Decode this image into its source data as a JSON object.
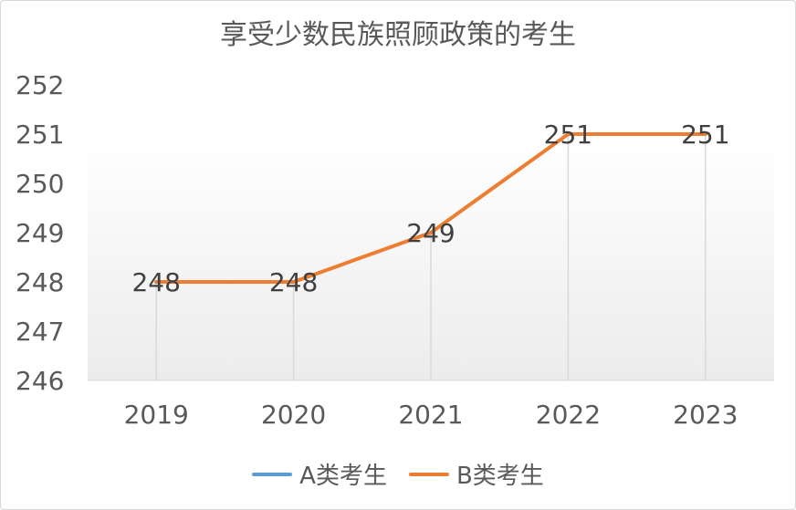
{
  "chart_data": {
    "type": "line",
    "title": "享受少数民族照顾政策的考生",
    "categories": [
      "2019",
      "2020",
      "2021",
      "2022",
      "2023"
    ],
    "ylim": [
      246,
      252
    ],
    "yticks": [
      "246",
      "247",
      "248",
      "249",
      "250",
      "251",
      "252"
    ],
    "xlabel": "",
    "ylabel": "",
    "grid": false,
    "legend_position": "bottom",
    "series": [
      {
        "name": "A类考生",
        "color": "#5b9bd5",
        "values": [
          null,
          null,
          null,
          null,
          null
        ]
      },
      {
        "name": "B类考生",
        "color": "#ed7d31",
        "values": [
          248,
          248,
          249,
          251,
          251
        ],
        "data_labels": [
          "248",
          "248",
          "249",
          "251",
          "251"
        ]
      }
    ]
  }
}
